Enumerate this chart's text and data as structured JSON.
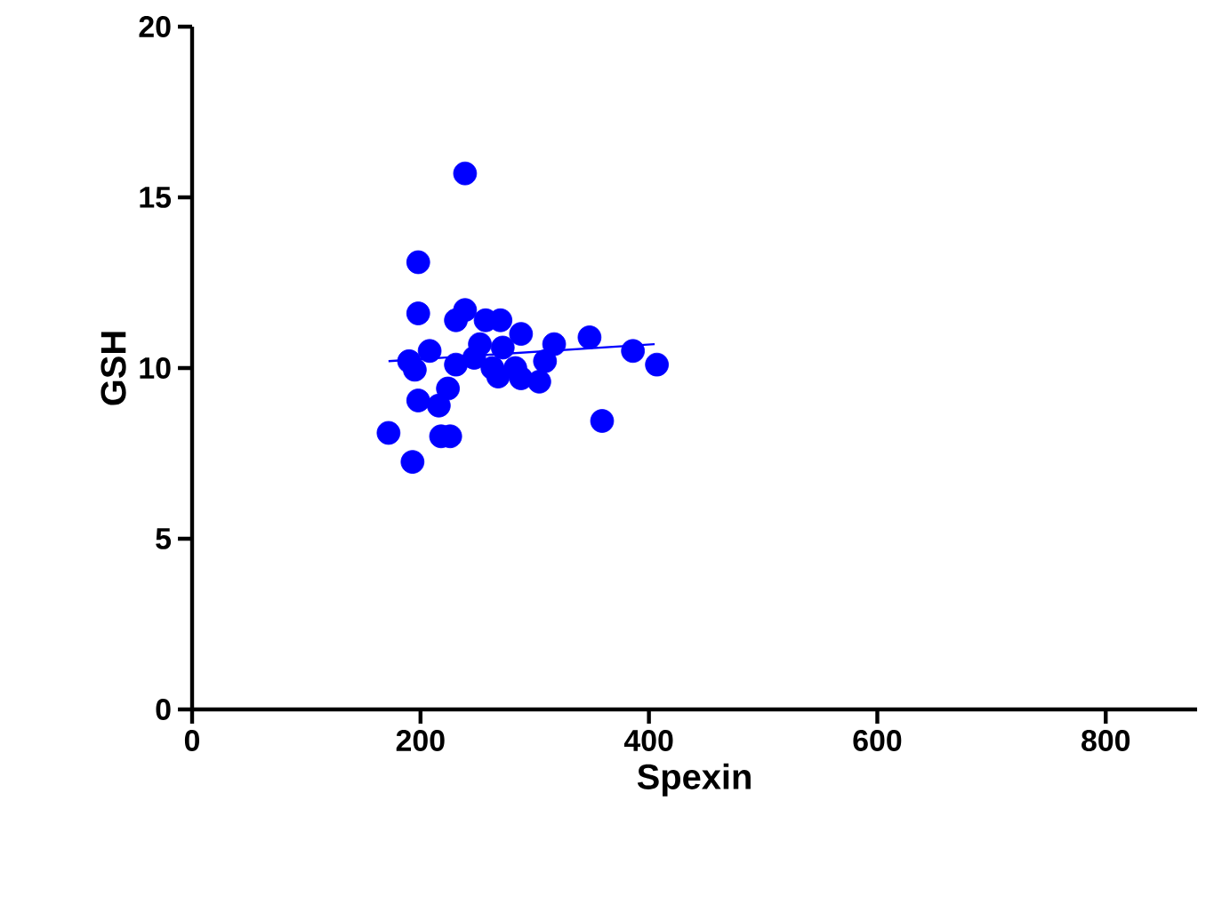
{
  "chart_data": {
    "type": "scatter",
    "xlabel": "Spexin",
    "ylabel": "GSH",
    "xlim": [
      0,
      880
    ],
    "ylim": [
      0,
      20
    ],
    "xticks": [
      0,
      200,
      400,
      600,
      800
    ],
    "yticks": [
      0,
      5,
      10,
      15,
      20
    ],
    "marker": "circle",
    "series": [
      {
        "color": "#0000ff",
        "x": [
          239,
          198,
          198,
          239,
          231,
          257,
          270,
          288,
          317,
          348,
          386,
          407,
          190,
          208,
          195,
          231,
          247,
          263,
          268,
          283,
          288,
          304,
          309,
          252,
          272,
          224,
          198,
          216,
          359,
          172,
          226,
          218,
          193
        ],
        "values": [
          15.7,
          13.1,
          11.6,
          11.7,
          11.4,
          11.4,
          11.4,
          11.0,
          10.7,
          10.9,
          10.5,
          10.1,
          10.2,
          10.5,
          9.95,
          10.1,
          10.3,
          10.0,
          9.75,
          10.0,
          9.7,
          9.6,
          10.2,
          10.7,
          10.6,
          9.4,
          9.05,
          8.9,
          8.45,
          8.1,
          8.0,
          8.0,
          7.25
        ]
      },
      {
        "type": "line",
        "marker": "none",
        "color": "#0000ff",
        "x": [
          172,
          405
        ],
        "values": [
          10.2,
          10.7
        ]
      }
    ]
  }
}
